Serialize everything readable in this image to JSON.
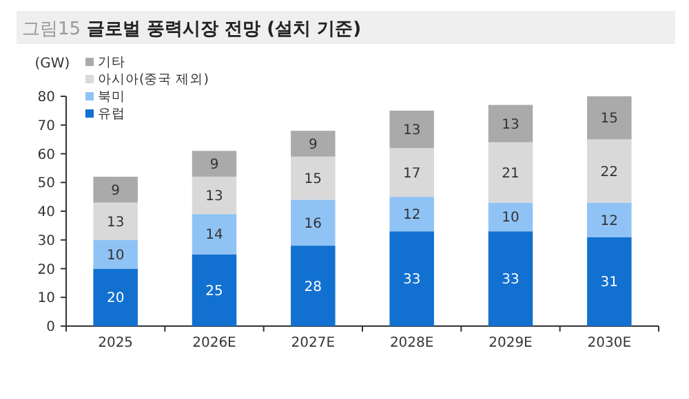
{
  "chart_data": {
    "type": "bar",
    "stacked": true,
    "title": "그림15 글로벌 풍력시장 전망 (설치 기준)",
    "ylabel": "(GW)",
    "categories": [
      "2025",
      "2026E",
      "2027E",
      "2028E",
      "2029E",
      "2030E"
    ],
    "series": [
      {
        "name": "유럽",
        "color": "#1270d0",
        "values": [
          20,
          25,
          28,
          33,
          33,
          31
        ]
      },
      {
        "name": "북미",
        "color": "#8fc3f5",
        "values": [
          10,
          14,
          16,
          12,
          10,
          12
        ]
      },
      {
        "name": "아시아(중국 제외)",
        "color": "#d9d9d9",
        "values": [
          13,
          13,
          15,
          17,
          21,
          22
        ]
      },
      {
        "name": "기타",
        "color": "#aaaaaa",
        "values": [
          9,
          9,
          9,
          13,
          13,
          15
        ]
      }
    ],
    "ylim": [
      0,
      80
    ],
    "yticks": [
      0,
      10,
      20,
      30,
      40,
      50,
      60,
      70,
      80
    ],
    "grid": false,
    "legend": "top left",
    "data_labels": true
  }
}
